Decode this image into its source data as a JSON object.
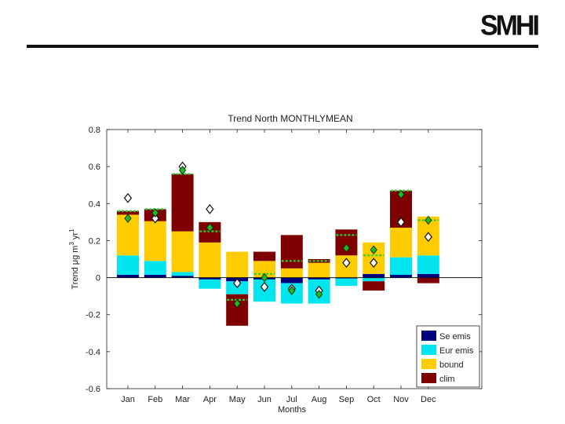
{
  "header": {
    "logo_text": "SMHI"
  },
  "chart_data": {
    "type": "bar",
    "stacked": true,
    "title": "Trend  North MONTHLYMEAN",
    "xlabel": "Months",
    "ylabel": "Trend μg m",
    "ylabel_sup1": "3",
    "ylabel_mid": " yr",
    "ylabel_sup2": "1",
    "ylim": [
      -0.6,
      0.8
    ],
    "yticks": [
      -0.6,
      -0.4,
      -0.2,
      0,
      0.2,
      0.4,
      0.6,
      0.8
    ],
    "ytick_labels": [
      "-0.6",
      "-0.4",
      "-0.2",
      "0",
      "0.2",
      "0.4",
      "0.6",
      "0.8"
    ],
    "categories": [
      "Jan",
      "Feb",
      "Mar",
      "Apr",
      "May",
      "Jun",
      "Jul",
      "Aug",
      "Sep",
      "Oct",
      "Nov",
      "Dec"
    ],
    "series": [
      {
        "name": "Se emis",
        "color": "#00007f",
        "values": [
          0.015,
          0.015,
          0.01,
          -0.01,
          -0.02,
          -0.01,
          -0.03,
          -0.01,
          -0.005,
          0.02,
          0.015,
          0.02
        ]
      },
      {
        "name": "Eur emis",
        "color": "#00e5ee",
        "values": [
          0.105,
          0.075,
          0.02,
          -0.05,
          -0.07,
          -0.12,
          -0.11,
          -0.13,
          -0.04,
          -0.02,
          0.095,
          0.1
        ]
      },
      {
        "name": "bound",
        "color": "#ffcc00",
        "values": [
          0.22,
          0.215,
          0.22,
          0.19,
          0.14,
          0.09,
          0.05,
          0.08,
          0.12,
          0.17,
          0.16,
          0.21
        ]
      },
      {
        "name": "clim",
        "color": "#7f0000",
        "values": [
          0.02,
          0.065,
          0.31,
          0.11,
          -0.17,
          0.05,
          0.18,
          0.02,
          0.14,
          -0.05,
          0.2,
          -0.03
        ]
      }
    ],
    "net_trend": [
      0.36,
      0.37,
      0.56,
      0.25,
      -0.12,
      0.02,
      0.09,
      0.09,
      0.23,
      0.12,
      0.47,
      0.31
    ],
    "green_markers": [
      0.32,
      0.35,
      0.58,
      0.27,
      -0.14,
      0.0,
      -0.07,
      -0.09,
      0.16,
      0.15,
      0.45,
      0.31
    ],
    "white_markers": [
      0.43,
      0.32,
      0.6,
      0.37,
      -0.03,
      -0.05,
      -0.06,
      -0.07,
      0.08,
      0.08,
      0.3,
      0.22
    ],
    "legend_position": "bottom-right",
    "grid": false
  }
}
